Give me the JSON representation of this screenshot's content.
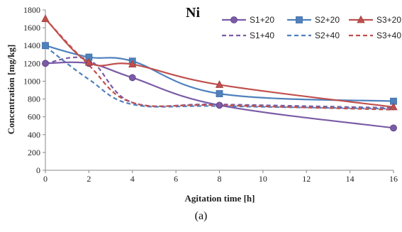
{
  "chart_data": {
    "type": "line",
    "title": "Ni",
    "xlabel": "Agitation time [h]",
    "ylabel": "Concentration [mg/kg]",
    "xlim": [
      0,
      16
    ],
    "ylim": [
      0,
      1800
    ],
    "xticks": [
      0,
      2,
      4,
      6,
      8,
      10,
      12,
      14,
      16
    ],
    "yticks": [
      0,
      200,
      400,
      600,
      800,
      1000,
      1200,
      1400,
      1600,
      1800
    ],
    "grid": false,
    "legend_position": "top-right",
    "x": [
      0,
      2,
      4,
      8,
      16
    ],
    "series": [
      {
        "name": "S1+20",
        "values": [
          1200,
          1200,
          1040,
          730,
          475
        ],
        "color": "#7b5ba6",
        "dash": "solid",
        "marker": "circle"
      },
      {
        "name": "S2+20",
        "values": [
          1400,
          1270,
          1225,
          860,
          775
        ],
        "color": "#4f81bd",
        "dash": "solid",
        "marker": "square"
      },
      {
        "name": "S3+20",
        "values": [
          1700,
          1210,
          1190,
          960,
          710
        ],
        "color": "#c0504d",
        "dash": "solid",
        "marker": "triangle"
      },
      {
        "name": "S1+40",
        "values": [
          1200,
          1240,
          760,
          740,
          700
        ],
        "color": "#7b5ba6",
        "dash": "dashed",
        "marker": "none"
      },
      {
        "name": "S2+40",
        "values": [
          1390,
          1020,
          740,
          720,
          690
        ],
        "color": "#4f81bd",
        "dash": "dashed",
        "marker": "none"
      },
      {
        "name": "S3+40",
        "values": [
          1700,
          1180,
          760,
          730,
          680
        ],
        "color": "#c0504d",
        "dash": "dashed",
        "marker": "none"
      }
    ]
  },
  "caption": "(a)"
}
